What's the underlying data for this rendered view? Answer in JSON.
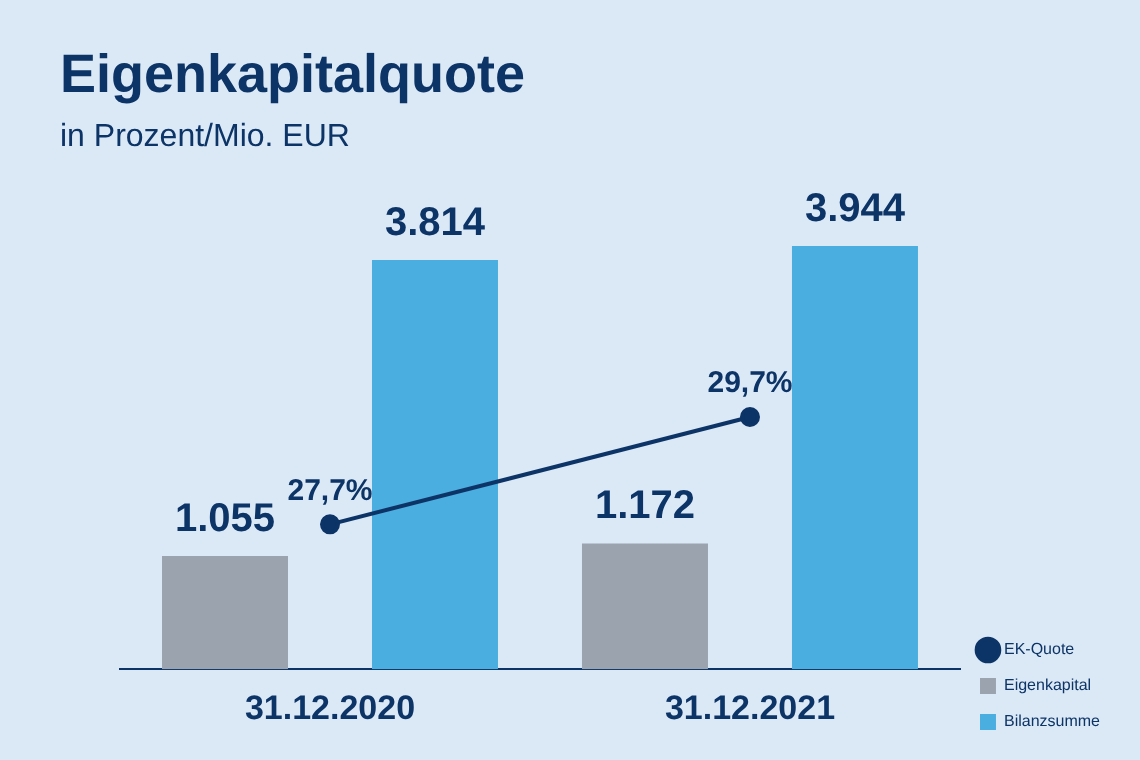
{
  "chart_data": {
    "type": "bar",
    "title": "Eigenkapitalquote",
    "subtitle": "in Prozent/Mio. EUR",
    "categories": [
      "31.12.2020",
      "31.12.2021"
    ],
    "series": [
      {
        "name": "Eigenkapital",
        "color": "#9aa3ae",
        "values": [
          1055,
          1172
        ],
        "value_labels": [
          "1.055",
          "1.172"
        ]
      },
      {
        "name": "Bilanzsumme",
        "color": "#4aaee0",
        "values": [
          3814,
          3944
        ],
        "value_labels": [
          "3.814",
          "3.944"
        ]
      },
      {
        "name": "EK-Quote",
        "type": "line",
        "axis": "y2",
        "color": "#0d3466",
        "values": [
          27.7,
          29.7
        ],
        "value_labels": [
          "27,7%",
          "29,7%"
        ]
      }
    ],
    "legend": "bottom right",
    "grid": false,
    "marker": "circle",
    "line_style": "solid"
  }
}
